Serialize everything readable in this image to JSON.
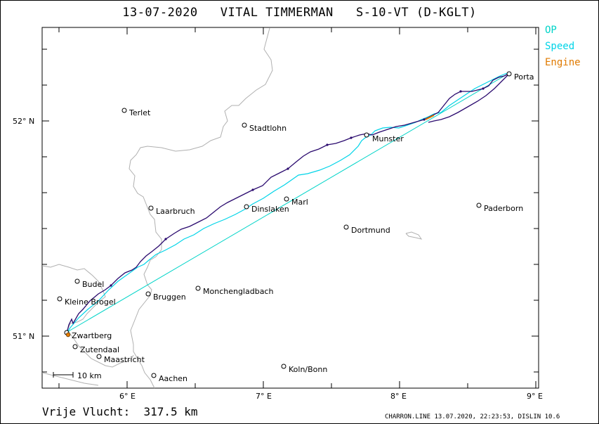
{
  "title": "13-07-2020   VITAL TIMMERMAN   S-10-VT (D-KGLT)",
  "legend": [
    {
      "label": "OP",
      "color": "#00d4c8"
    },
    {
      "label": "Speed",
      "color": "#00d4e8"
    },
    {
      "label": "Engine",
      "color": "#e07a00"
    }
  ],
  "footer": {
    "distance": "Vrije Vlucht:  317.5 km",
    "software": "CHARRON.LINE 13.07.2020, 22:23:53, DISLIN 10.6"
  },
  "scale_label": "10 km",
  "axes": {
    "lat_labels": [
      "52° N",
      "51° N"
    ],
    "lon_labels": [
      "6° E",
      "7° E",
      "8° E",
      "9° E"
    ]
  },
  "colors": {
    "track": "#2a0a6e",
    "speed": "#00d4e8",
    "op": "#00d4c8",
    "engine": "#e07a00",
    "border": "#b0b0b0"
  },
  "cities": [
    {
      "name": "Terlet"
    },
    {
      "name": "Stadtlohn"
    },
    {
      "name": "Munster"
    },
    {
      "name": "Porta"
    },
    {
      "name": "Laarbruch"
    },
    {
      "name": "Dinslaken"
    },
    {
      "name": "Marl"
    },
    {
      "name": "Paderborn"
    },
    {
      "name": "Dortmund"
    },
    {
      "name": "Budel"
    },
    {
      "name": "Kleine Brogel"
    },
    {
      "name": "Bruggen"
    },
    {
      "name": "Monchengladbach"
    },
    {
      "name": "Zwartberg"
    },
    {
      "name": "Zutendaal"
    },
    {
      "name": "Maastricht"
    },
    {
      "name": "Aachen"
    },
    {
      "name": "Koln/Bonn"
    }
  ]
}
